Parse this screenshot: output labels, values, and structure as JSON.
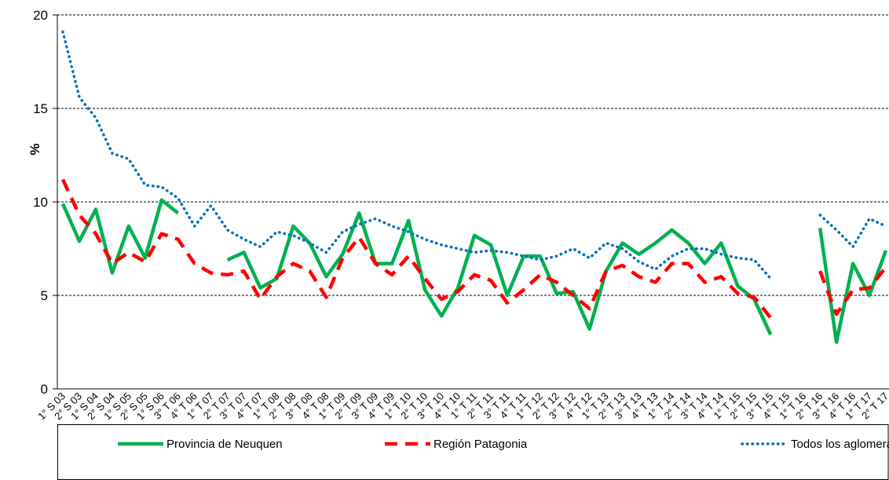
{
  "chart_data": {
    "type": "line",
    "ylabel": "%",
    "categories": [
      "1° S 03",
      "2° S 03",
      "1° S 04",
      "2° S 04",
      "1° S 05",
      "2° S 05",
      "1° S 06",
      "3° T 06",
      "4° T 06",
      "1° T 07",
      "2° T 07",
      "3° T 07",
      "4° T 07",
      "1° T 08",
      "2° T 08",
      "3° T 08",
      "4° T 08",
      "1° T 09",
      "2° T 09",
      "3° T 09",
      "4° T 09",
      "1° T 10",
      "2° T 10",
      "3° T 10",
      "4° T 10",
      "1° T 11",
      "2° T 11",
      "3° T 11",
      "4° T 11",
      "1° T 12",
      "2° T 12",
      "3° T 12",
      "4° T 12",
      "1° T 13",
      "2° T 13",
      "3° T 13",
      "4° T 13",
      "1° T 14",
      "2° T 14",
      "3° T 14",
      "4° T 14",
      "1° T 15",
      "2° T 15",
      "3° T 15",
      "4° T 15",
      "1° T 16",
      "2° T 16",
      "3° T 16",
      "4° T 16",
      "1° T 17",
      "2° T 17"
    ],
    "series": [
      {
        "name": "Provincia de Neuquen",
        "color": "#00b050",
        "style": "solid",
        "values": [
          9.9,
          7.9,
          9.6,
          6.2,
          8.7,
          7.0,
          10.1,
          9.4,
          null,
          null,
          6.9,
          7.3,
          5.4,
          5.9,
          8.7,
          7.8,
          6.0,
          7.2,
          9.4,
          6.7,
          6.7,
          9.0,
          5.3,
          3.9,
          5.4,
          8.2,
          7.7,
          5.0,
          7.1,
          7.1,
          5.1,
          5.2,
          3.2,
          6.3,
          7.8,
          7.2,
          7.8,
          8.5,
          7.8,
          6.7,
          7.8,
          5.5,
          4.8,
          2.9,
          null,
          null,
          8.6,
          2.5,
          6.7,
          5.0,
          7.4
        ]
      },
      {
        "name": "Región Patagonia",
        "color": "#ff0000",
        "style": "dashed",
        "values": [
          11.2,
          9.3,
          8.3,
          6.7,
          7.3,
          6.8,
          8.3,
          8.0,
          6.7,
          6.2,
          6.1,
          6.3,
          4.8,
          6.0,
          6.7,
          6.3,
          4.9,
          7.0,
          8.1,
          6.7,
          6.1,
          7.1,
          5.9,
          4.8,
          5.2,
          6.1,
          5.8,
          4.6,
          5.3,
          6.1,
          5.7,
          5.0,
          4.3,
          6.3,
          6.6,
          6.0,
          5.7,
          6.7,
          6.7,
          5.7,
          6.0,
          5.1,
          4.9,
          3.8,
          null,
          null,
          6.3,
          4.0,
          5.3,
          5.4,
          6.5
        ]
      },
      {
        "name": "Todos los aglomerados urbanos",
        "color": "#0070c0",
        "style": "dotted",
        "values": [
          19.1,
          15.6,
          14.5,
          12.6,
          12.3,
          10.9,
          10.8,
          10.2,
          8.7,
          9.8,
          8.5,
          8.0,
          7.6,
          8.4,
          8.2,
          7.8,
          7.3,
          8.4,
          8.8,
          9.1,
          8.7,
          8.4,
          8.0,
          7.7,
          7.5,
          7.3,
          7.4,
          7.3,
          7.1,
          6.9,
          7.1,
          7.5,
          7.0,
          7.8,
          7.5,
          6.8,
          6.4,
          7.1,
          7.5,
          7.5,
          7.2,
          7.0,
          6.9,
          5.9,
          null,
          null,
          9.3,
          8.5,
          7.6,
          9.1,
          8.7
        ]
      }
    ],
    "ylim": [
      0,
      20
    ],
    "yticks": [
      0,
      5,
      10,
      15,
      20
    ],
    "grid": true,
    "legend": "bottom"
  }
}
